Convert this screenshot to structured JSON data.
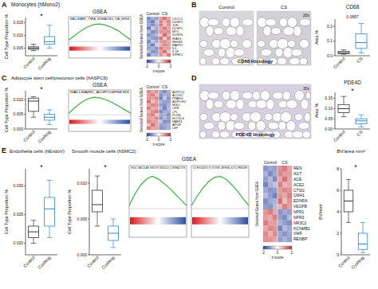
{
  "chart_data": [
    {
      "type": "box",
      "title": "Monocytes (hMono2)",
      "ylabel": "Cell Type Proportion %",
      "categories": [
        "Control",
        "Cushing"
      ],
      "colors": [
        "#333333",
        "#2e86c8"
      ],
      "stats": [
        [
          0.004,
          0.0045,
          0.005,
          0.0055,
          0.0065
        ],
        [
          0.005,
          0.0065,
          0.0075,
          0.0095,
          0.014
        ]
      ],
      "ylim": [
        0.002,
        0.017
      ],
      "yticks": [
        0.005,
        {
          "value": 0.01,
          "label": "0.010"
        },
        0.015
      ],
      "annotation": "*"
    },
    {
      "type": "line",
      "title": "HALLMARK_TNFA_SIGNALING_VIA_NFKB",
      "x": [
        0,
        10,
        20,
        30,
        40,
        50,
        60,
        70,
        80,
        90,
        100
      ],
      "values": [
        0,
        0.15,
        0.3,
        0.42,
        0.5,
        0.52,
        0.48,
        0.4,
        0.3,
        0.15,
        0
      ],
      "xlim": [
        0,
        100
      ],
      "ylim": [
        -0.05,
        0.6
      ],
      "color": "#3cb043",
      "tick_labels": false
    },
    {
      "type": "heatmap",
      "ylabel": "Selected Genes from GSEA",
      "groups": [
        "Control",
        "CS"
      ],
      "rows": [
        "CXCL3",
        "DUSP1",
        "JUN",
        "DUSP1",
        "MYC",
        "DUSP6",
        "IRAK3",
        "NFKB1",
        "MAPK1",
        "IL6",
        "IL18",
        "SPHK1"
      ],
      "cells": [
        [
          -1.2,
          -0.8,
          -1.0,
          0.9,
          1.3,
          0.8
        ],
        [
          -1.0,
          -1.3,
          -0.6,
          1.1,
          0.7,
          1.1
        ],
        [
          -0.9,
          -1.1,
          -0.8,
          1.2,
          0.6,
          1.0
        ],
        [
          -1.4,
          -0.5,
          -0.9,
          0.8,
          1.2,
          0.8
        ],
        [
          -0.7,
          -1.2,
          -1.0,
          1.0,
          0.9,
          1.0
        ],
        [
          -1.1,
          -0.9,
          -0.7,
          0.6,
          1.4,
          0.7
        ],
        [
          -0.8,
          -1.0,
          -1.1,
          1.3,
          0.5,
          1.1
        ],
        [
          -1.2,
          -0.6,
          -0.9,
          0.9,
          1.0,
          0.8
        ],
        [
          -0.9,
          -1.3,
          -0.5,
          0.7,
          1.1,
          0.9
        ],
        [
          -1.0,
          -0.8,
          -1.1,
          1.2,
          0.8,
          0.9
        ],
        [
          -0.6,
          -1.1,
          -1.0,
          0.9,
          1.3,
          0.5
        ],
        [
          -1.3,
          -0.7,
          -0.8,
          1.0,
          0.6,
          1.2
        ]
      ],
      "colorbar": {
        "range": [
          -2,
          2
        ],
        "ticks": [
          -2,
          0,
          2
        ],
        "label": "z-score"
      }
    },
    {
      "type": "box",
      "title": "CD68",
      "ylabel": "Area %",
      "categories": [
        "Control",
        "CS"
      ],
      "colors": [
        "#333333",
        "#2e86c8"
      ],
      "stats": [
        [
          0.01,
          0.015,
          0.02,
          0.03,
          0.04
        ],
        [
          0.02,
          0.05,
          0.09,
          0.15,
          0.22
        ]
      ],
      "ylim": [
        0,
        0.25
      ],
      "yticks": [
        {
          "value": 0,
          "label": "0.0"
        },
        0.1,
        0.2
      ],
      "annotation": "0.0667"
    },
    {
      "type": "box",
      "title": "Adipocyte stem cell/precursor cells (hASPC6)",
      "ylabel": "Cell Type Proportion %",
      "categories": [
        "Control",
        "Cushing"
      ],
      "colors": [
        "#333333",
        "#2e86c8"
      ],
      "stats": [
        [
          0.004,
          0.006,
          0.0095,
          0.0105,
          0.011
        ],
        [
          0.0015,
          0.003,
          0.004,
          0.005,
          0.0065
        ]
      ],
      "ylim": [
        0,
        0.013
      ],
      "yticks": [
        {
          "value": 0,
          "label": "0.000"
        },
        0.005,
        {
          "value": 0.01,
          "label": "0.010"
        }
      ],
      "annotation": "*"
    },
    {
      "type": "line",
      "title": "HALLMARK_ADIPOGENESIS",
      "x": [
        0,
        10,
        20,
        30,
        40,
        50,
        60,
        70,
        80,
        90,
        100
      ],
      "values": [
        0,
        0.18,
        0.34,
        0.46,
        0.52,
        0.5,
        0.44,
        0.35,
        0.24,
        0.12,
        0
      ],
      "xlim": [
        0,
        100
      ],
      "ylim": [
        -0.05,
        0.6
      ],
      "color": "#3cb043",
      "tick_labels": false
    },
    {
      "type": "heatmap",
      "ylabel": "Selected Genes from GSEA",
      "groups": [
        "Control",
        "CS"
      ],
      "rows": [
        "ADIPOQ",
        "ACOX1",
        "PPARG",
        "ADIPOR2",
        "MGLL",
        "LIPE",
        "LPL",
        "PLIN1",
        "ELOVL6",
        "FABP4",
        "APOE",
        "LEP"
      ],
      "cells": [
        [
          1.1,
          0.8,
          1.0,
          -0.9,
          -1.2,
          -0.8
        ],
        [
          0.9,
          1.2,
          0.7,
          -1.1,
          -0.8,
          -0.9
        ],
        [
          1.0,
          0.9,
          1.1,
          -1.3,
          -0.6,
          -1.1
        ],
        [
          1.3,
          0.6,
          0.9,
          -0.8,
          -1.0,
          -1.0
        ],
        [
          0.8,
          1.1,
          1.0,
          -1.0,
          -1.1,
          -0.8
        ],
        [
          1.2,
          0.7,
          0.8,
          -0.7,
          -1.3,
          -0.7
        ],
        [
          0.7,
          1.0,
          1.2,
          -1.2,
          -0.9,
          -0.8
        ],
        [
          1.0,
          1.2,
          0.6,
          -0.9,
          -0.8,
          -1.1
        ],
        [
          0.9,
          0.8,
          1.1,
          -1.1,
          -0.7,
          -1.0
        ],
        [
          1.1,
          0.9,
          0.9,
          -0.6,
          -1.2,
          -1.1
        ],
        [
          0.6,
          1.3,
          0.8,
          -1.0,
          -0.9,
          -0.8
        ],
        [
          1.2,
          0.8,
          0.9,
          -1.1,
          -1.0,
          -0.8
        ]
      ],
      "colorbar": {
        "range": [
          -2,
          2
        ],
        "ticks": [
          -2,
          0,
          2
        ],
        "label": "z-score"
      }
    },
    {
      "type": "box",
      "title": "PDE4D",
      "ylabel": "Area %",
      "categories": [
        "Control",
        "CS"
      ],
      "colors": [
        "#333333",
        "#2e86c8"
      ],
      "stats": [
        [
          0.06,
          0.08,
          0.1,
          0.12,
          0.16
        ],
        [
          0.01,
          0.025,
          0.04,
          0.05,
          0.07
        ]
      ],
      "ylim": [
        0,
        0.18
      ],
      "yticks": [
        {
          "value": 0,
          "label": "0.00"
        },
        0.05,
        {
          "value": 0.1,
          "label": "0.10"
        },
        0.15
      ],
      "annotation": "*"
    },
    {
      "type": "box",
      "title": "Endothelia cells (hEndoV)",
      "ylabel": "Cell Type Proportion %",
      "categories": [
        "Control",
        "Cushing"
      ],
      "colors": [
        "#333333",
        "#2e86c8"
      ],
      "stats": [
        [
          0.02,
          0.021,
          0.022,
          0.023,
          0.024
        ],
        [
          0.021,
          0.023,
          0.026,
          0.028,
          0.031
        ]
      ],
      "ylim": [
        0.018,
        0.033
      ],
      "yticks": [
        {
          "value": 0.02,
          "label": "0.020"
        },
        0.025,
        {
          "value": 0.03,
          "label": "0.030"
        }
      ],
      "annotation": "*"
    },
    {
      "type": "box",
      "title": "Smooth muscle cells (hSMC2)",
      "ylabel": "Cell Type Proportion %",
      "categories": [
        "Control",
        "Cushing"
      ],
      "colors": [
        "#333333",
        "#2e86c8"
      ],
      "stats": [
        [
          0.004,
          0.006,
          0.007,
          0.009,
          0.011
        ],
        [
          0.001,
          0.002,
          0.003,
          0.004,
          0.005
        ]
      ],
      "ylim": [
        0,
        0.012
      ],
      "yticks": [
        {
          "value": 0,
          "label": "0.000"
        },
        0.005,
        {
          "value": 0.01,
          "label": "0.010"
        }
      ],
      "annotation": "*"
    },
    {
      "type": "line",
      "title": "KEGG_VASCULAR_SMOOTH_MUSCLE_CONTRACTION",
      "x": [
        0,
        10,
        20,
        30,
        40,
        50,
        60,
        70,
        80,
        90,
        100
      ],
      "values": [
        0,
        0.2,
        0.35,
        0.45,
        0.5,
        0.46,
        0.38,
        0.3,
        0.2,
        0.1,
        0
      ],
      "xlim": [
        0,
        100
      ],
      "ylim": [
        -0.05,
        0.6
      ],
      "color": "#3cb043",
      "tick_labels": false
    },
    {
      "type": "line",
      "title": "GO_REGULATION_OF_SYSTEMIC_ARTERIAL_BLOOD_PRESSURE",
      "x": [
        0,
        10,
        20,
        30,
        40,
        50,
        60,
        70,
        80,
        90,
        100
      ],
      "values": [
        0,
        0.16,
        0.3,
        0.41,
        0.48,
        0.5,
        0.45,
        0.36,
        0.25,
        0.12,
        0
      ],
      "xlim": [
        0,
        100
      ],
      "ylim": [
        -0.05,
        0.6
      ],
      "color": "#3cb043",
      "tick_labels": false
    },
    {
      "type": "heatmap",
      "ylabel": "Selected Genes from GSEA",
      "groups": [
        "Control",
        "CS"
      ],
      "rows": [
        "REN",
        "AGT",
        "ACE",
        "ACE2",
        "CTSG",
        "CMA1",
        "EDNRA",
        "VEGFB",
        "NPR1",
        "NPR3",
        "NR3C2",
        "KCNMB1",
        "VWF",
        "RENBP"
      ],
      "cells": [
        [
          -1.1,
          -0.9,
          -1.0,
          1.0,
          1.2,
          0.8
        ],
        [
          -0.8,
          -1.2,
          -0.9,
          1.1,
          0.9,
          0.9
        ],
        [
          -1.0,
          -0.7,
          -1.2,
          0.8,
          1.3,
          0.8
        ],
        [
          -1.3,
          -0.8,
          -0.6,
          1.2,
          0.7,
          0.8
        ],
        [
          -0.9,
          -1.1,
          -1.0,
          0.9,
          1.1,
          1.0
        ],
        [
          -0.7,
          -1.0,
          -1.3,
          1.0,
          0.8,
          1.2
        ],
        [
          -1.2,
          -0.9,
          -0.8,
          1.3,
          0.6,
          1.0
        ],
        [
          -1.0,
          -1.1,
          -0.7,
          0.7,
          1.2,
          0.9
        ],
        [
          1.0,
          1.2,
          0.8,
          -1.1,
          -0.9,
          -1.0
        ],
        [
          0.9,
          0.8,
          1.2,
          -1.0,
          -1.2,
          -0.7
        ],
        [
          1.2,
          0.9,
          0.9,
          -0.8,
          -1.0,
          -1.2
        ],
        [
          0.8,
          1.1,
          1.0,
          -1.3,
          -0.7,
          -0.9
        ],
        [
          1.1,
          0.7,
          1.1,
          -0.9,
          -1.1,
          -0.9
        ],
        [
          1.0,
          1.0,
          0.8,
          -1.0,
          -0.8,
          -1.0
        ]
      ],
      "colorbar": {
        "range": [
          -2,
          2
        ],
        "ticks": [
          -2,
          0,
          2
        ],
        "label": "z-score"
      }
    },
    {
      "type": "box",
      "title": "BV/area mm²",
      "ylabel": "BV/mm²",
      "categories": [
        "Control",
        "Cushing"
      ],
      "colors": [
        "#333333",
        "#2e86c8"
      ],
      "stats": [
        [
          3,
          4,
          5,
          6,
          7
        ],
        [
          0.2,
          0.5,
          1,
          2,
          3
        ]
      ],
      "ylim": [
        0,
        8
      ],
      "yticks": [
        0,
        2,
        4,
        6,
        8
      ],
      "annotation": "*"
    }
  ],
  "figure": {
    "panel_labels": [
      "A",
      "B",
      "C",
      "D",
      "E"
    ],
    "gsea_labels": [
      "GSEA",
      "GSEA",
      "GSEA"
    ],
    "histology": [
      {
        "labels": [
          "Control",
          "CS"
        ],
        "caption": "CD68 Histology",
        "magnification": "20x"
      },
      {
        "caption": "PDE4D Histology",
        "magnification": "30x"
      }
    ]
  }
}
